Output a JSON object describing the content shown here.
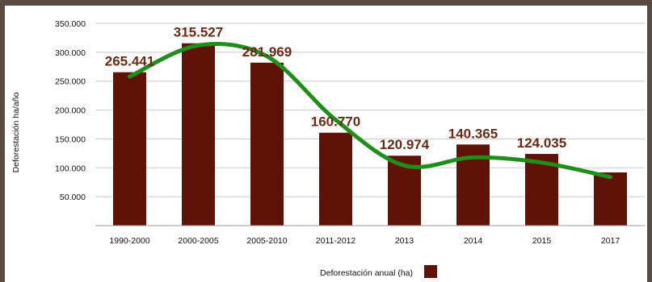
{
  "chart_data": {
    "type": "bar",
    "categories": [
      "1990-2000",
      "2000-2005",
      "2005-2010",
      "2011-2012",
      "2013",
      "2014",
      "2015",
      "2017"
    ],
    "series": [
      {
        "name": "Deforestación anual (ha)",
        "values": [
          265441,
          315527,
          281969,
          160770,
          120974,
          140365,
          124035,
          92000
        ],
        "color": "#5e1306"
      }
    ],
    "data_labels": [
      "265.441",
      "315.527",
      "281.969",
      "160.770",
      "120.974",
      "140.365",
      "124.035",
      ""
    ],
    "trend_line": {
      "values": [
        258000,
        312000,
        293000,
        183000,
        104000,
        118000,
        109000,
        84000
      ],
      "color": "#1f8f1a"
    },
    "title": "",
    "xlabel": "",
    "ylabel": "Deforestación ha/año",
    "ylim": [
      0,
      350000
    ],
    "yticks": [
      50000,
      100000,
      150000,
      200000,
      250000,
      300000,
      350000
    ],
    "ytick_labels": [
      "50.000",
      "100.000",
      "150.000",
      "200.000",
      "250.000",
      "300.000",
      "350.000"
    ],
    "grid": true,
    "legend": {
      "position": "bottom-center",
      "label": "Deforestación anual (ha)"
    }
  }
}
